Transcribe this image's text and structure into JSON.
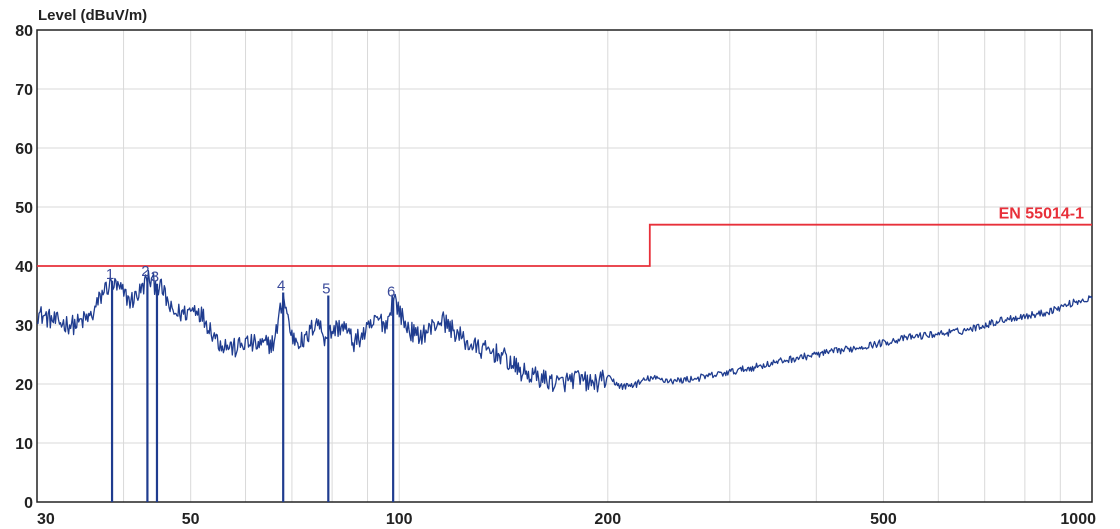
{
  "chart_data": {
    "type": "line",
    "ylabel": "Level (dBuV/m)",
    "xscale": "log",
    "xlim": [
      30,
      1000
    ],
    "ylim": [
      0,
      80
    ],
    "grid": true,
    "x_ticks": [
      30,
      50,
      100,
      200,
      500,
      1000
    ],
    "y_ticks": [
      0,
      10,
      20,
      30,
      40,
      50,
      60,
      70,
      80
    ],
    "limit_line": {
      "name": "EN 55014-1",
      "color": "#e8303a",
      "points": [
        [
          30,
          40
        ],
        [
          230,
          40
        ],
        [
          230,
          47
        ],
        [
          1000,
          47
        ]
      ]
    },
    "series": [
      {
        "color": "#1f3c8f",
        "x": [
          30,
          32,
          34,
          36,
          37.5,
          38.5,
          39.5,
          41,
          42.5,
          43.3,
          44.2,
          45.5,
          47,
          49,
          51,
          53,
          55,
          58,
          60,
          63,
          66,
          68,
          70,
          73,
          76,
          78,
          80,
          83,
          86,
          90,
          93,
          96,
          98,
          102,
          106,
          110,
          115,
          120,
          125,
          130,
          140,
          150,
          160,
          170,
          180,
          190,
          200,
          210,
          220,
          230,
          250,
          270,
          300,
          330,
          360,
          400,
          450,
          500,
          550,
          600,
          650,
          700,
          750,
          800,
          850,
          900,
          950,
          1000
        ],
        "y": [
          32,
          30.5,
          30,
          31.5,
          36,
          37,
          36,
          34,
          36,
          38,
          37,
          36,
          32,
          32,
          33,
          30,
          27,
          26,
          27,
          26.5,
          27,
          35,
          28,
          27,
          31,
          28,
          29,
          30,
          27,
          29,
          31,
          30,
          35,
          30,
          28,
          29,
          31,
          29,
          27,
          26,
          25,
          22,
          21,
          20,
          21,
          20,
          21,
          19.5,
          20,
          21,
          20.5,
          21,
          22,
          23,
          24,
          25,
          26,
          27,
          28,
          28.5,
          29,
          30,
          31,
          31.5,
          32,
          33,
          34,
          34.5
        ]
      }
    ],
    "markers": [
      {
        "label": "1",
        "x": 38.5,
        "y": 37.5
      },
      {
        "label": "2",
        "x": 43.3,
        "y": 38
      },
      {
        "label": "3",
        "x": 44.7,
        "y": 37
      },
      {
        "label": "4",
        "x": 68,
        "y": 35.5
      },
      {
        "label": "5",
        "x": 79,
        "y": 35
      },
      {
        "label": "6",
        "x": 98,
        "y": 34.5
      }
    ]
  }
}
